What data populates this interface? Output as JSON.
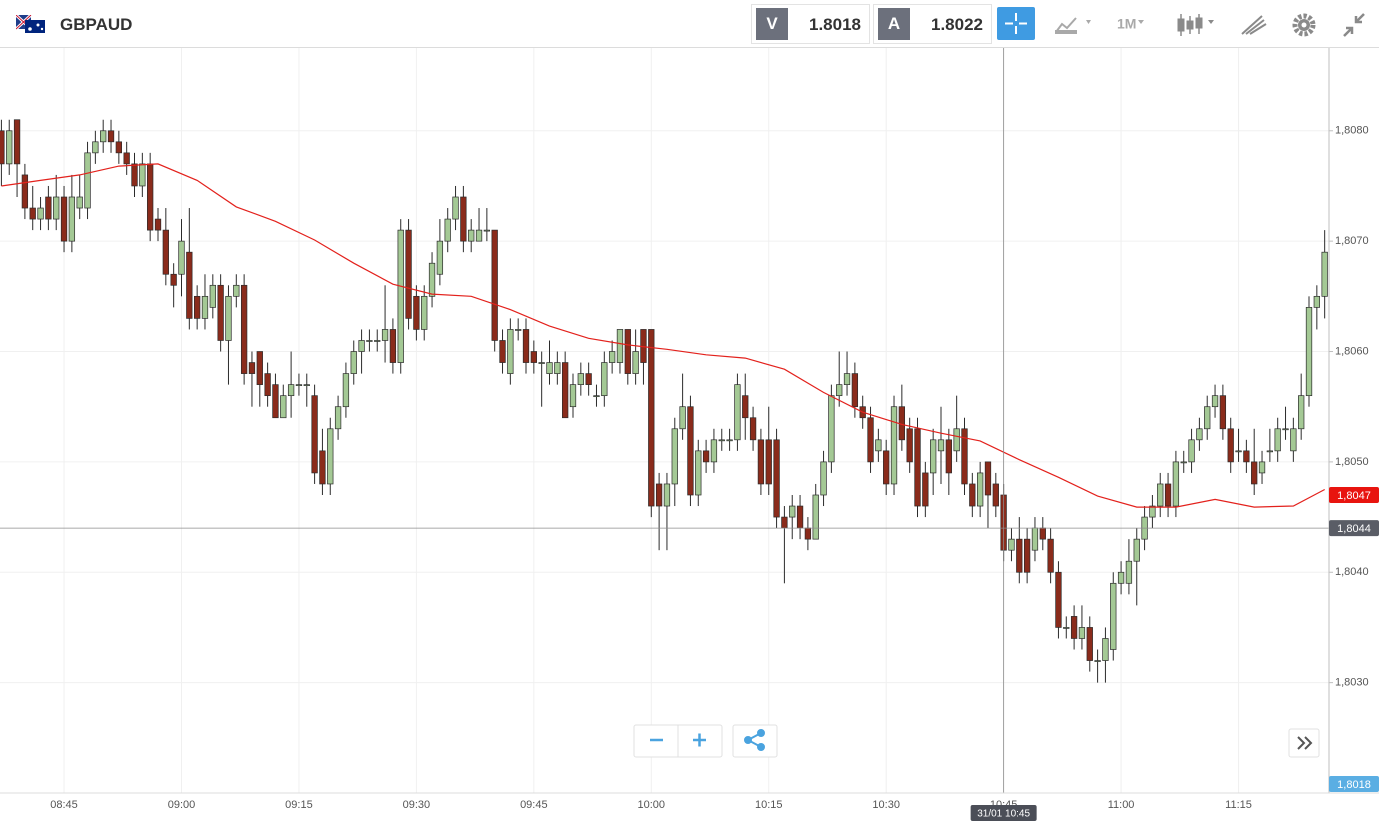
{
  "header": {
    "symbol": "GBPAUD",
    "bid_label": "V",
    "bid": "1.8018",
    "ask_label": "A",
    "ask": "1.8022",
    "timeframe": "1M"
  },
  "chart_data": {
    "type": "candlestick",
    "up_color": "#a4c995",
    "down_color": "#8a2b1b",
    "wick_color": "#2b2b2b",
    "ylim": [
      1.802,
      1.80875
    ],
    "yticks": [
      {
        "value": 1.803,
        "label": "1,8030"
      },
      {
        "value": 1.804,
        "label": "1,8040"
      },
      {
        "value": 1.805,
        "label": "1,8050"
      },
      {
        "value": 1.806,
        "label": "1,8060"
      },
      {
        "value": 1.807,
        "label": "1,8070"
      },
      {
        "value": 1.808,
        "label": "1,8080"
      }
    ],
    "xticks": [
      "08:45",
      "09:00",
      "09:15",
      "09:30",
      "09:45",
      "10:00",
      "10:15",
      "10:30",
      "10:45",
      "11:00",
      "11:15"
    ],
    "grid": true,
    "x": [
      "08:37",
      "08:38",
      "08:39",
      "08:40",
      "08:41",
      "08:42",
      "08:43",
      "08:44",
      "08:45",
      "08:46",
      "08:47",
      "08:48",
      "08:49",
      "08:50",
      "08:51",
      "08:52",
      "08:53",
      "08:54",
      "08:55",
      "08:56",
      "08:57",
      "08:58",
      "08:59",
      "09:00",
      "09:01",
      "09:02",
      "09:03",
      "09:04",
      "09:05",
      "09:06",
      "09:07",
      "09:08",
      "09:09",
      "09:10",
      "09:11",
      "09:12",
      "09:13",
      "09:14",
      "09:15",
      "09:16",
      "09:17",
      "09:18",
      "09:19",
      "09:20",
      "09:21",
      "09:22",
      "09:23",
      "09:24",
      "09:25",
      "09:26",
      "09:27",
      "09:28",
      "09:29",
      "09:30",
      "09:31",
      "09:32",
      "09:33",
      "09:34",
      "09:35",
      "09:36",
      "09:37",
      "09:38",
      "09:39",
      "09:40",
      "09:41",
      "09:42",
      "09:43",
      "09:44",
      "09:45",
      "09:46",
      "09:47",
      "09:48",
      "09:49",
      "09:50",
      "09:51",
      "09:52",
      "09:53",
      "09:54",
      "09:55",
      "09:56",
      "09:57",
      "09:58",
      "09:59",
      "10:00",
      "10:01",
      "10:02",
      "10:03",
      "10:04",
      "10:05",
      "10:06",
      "10:07",
      "10:08",
      "10:09",
      "10:10",
      "10:11",
      "10:12",
      "10:13",
      "10:14",
      "10:15",
      "10:16",
      "10:17",
      "10:18",
      "10:19",
      "10:20",
      "10:21",
      "10:22",
      "10:23",
      "10:24",
      "10:25",
      "10:26",
      "10:27",
      "10:28",
      "10:29",
      "10:30",
      "10:31",
      "10:32",
      "10:33",
      "10:34",
      "10:35",
      "10:36",
      "10:37",
      "10:38",
      "10:39",
      "10:40",
      "10:41",
      "10:42",
      "10:43",
      "10:44",
      "10:45",
      "10:46",
      "10:47",
      "10:48",
      "10:49",
      "10:50",
      "10:51",
      "10:52",
      "10:53",
      "10:54",
      "10:55",
      "10:56",
      "10:57",
      "10:58",
      "10:59",
      "11:00",
      "11:01",
      "11:02",
      "11:03",
      "11:04",
      "11:05",
      "11:06",
      "11:07",
      "11:08",
      "11:09",
      "11:10",
      "11:11",
      "11:12",
      "11:13",
      "11:14",
      "11:15",
      "11:16",
      "11:17",
      "11:18",
      "11:19",
      "11:20",
      "11:21",
      "11:22",
      "11:23",
      "11:24",
      "11:25",
      "11:26"
    ],
    "open": [
      1.808,
      1.8077,
      1.8081,
      1.8076,
      1.8073,
      1.8072,
      1.8074,
      1.8072,
      1.8074,
      1.807,
      1.8073,
      1.8073,
      1.8078,
      1.8079,
      1.808,
      1.8079,
      1.8078,
      1.8077,
      1.8075,
      1.8077,
      1.8072,
      1.8071,
      1.8067,
      1.8067,
      1.8069,
      1.8065,
      1.8063,
      1.8064,
      1.8066,
      1.8061,
      1.8065,
      1.8066,
      1.8059,
      1.806,
      1.8058,
      1.8057,
      1.8054,
      1.8056,
      1.8057,
      1.8057,
      1.8056,
      1.8051,
      1.8048,
      1.8053,
      1.8055,
      1.8058,
      1.806,
      1.8061,
      1.8061,
      1.8061,
      1.8062,
      1.8059,
      1.8071,
      1.8065,
      1.8062,
      1.8065,
      1.8067,
      1.807,
      1.8072,
      1.8074,
      1.807,
      1.807,
      1.8071,
      1.8071,
      1.8061,
      1.8058,
      1.8062,
      1.8062,
      1.806,
      1.8059,
      1.8058,
      1.8058,
      1.8059,
      1.8055,
      1.8057,
      1.8058,
      1.8056,
      1.8056,
      1.8059,
      1.8059,
      1.8062,
      1.8058,
      1.8062,
      1.8062,
      1.8048,
      1.8046,
      1.8048,
      1.8053,
      1.8055,
      1.8047,
      1.8051,
      1.805,
      1.8052,
      1.8052,
      1.8052,
      1.8056,
      1.8054,
      1.8052,
      1.8052,
      1.8052,
      1.8045,
      1.8045,
      1.8046,
      1.8044,
      1.8043,
      1.8047,
      1.805,
      1.8056,
      1.8057,
      1.8058,
      1.8055,
      1.8054,
      1.8051,
      1.8051,
      1.8048,
      1.8055,
      1.8053,
      1.8053,
      1.8049,
      1.8049,
      1.8051,
      1.8052,
      1.8051,
      1.8053,
      1.8048,
      1.8046,
      1.805,
      1.8048,
      1.8047,
      1.8042,
      1.8043,
      1.8043,
      1.8042,
      1.8044,
      1.8043,
      1.804,
      1.8035,
      1.8036,
      1.8034,
      1.8035,
      1.8032,
      1.8032,
      1.8033,
      1.8039,
      1.8039,
      1.8041,
      1.8043,
      1.8045,
      1.8046,
      1.8048,
      1.8046,
      1.805,
      1.805,
      1.8052,
      1.8053,
      1.8055,
      1.8056,
      1.8053,
      1.8051,
      1.8051,
      1.805,
      1.8049,
      1.8051,
      1.8051,
      1.8053,
      1.8051,
      1.8053,
      1.8056,
      1.8064,
      1.8065
    ],
    "high": [
      1.8081,
      1.8081,
      1.8081,
      1.8077,
      1.8075,
      1.8074,
      1.8075,
      1.8076,
      1.8075,
      1.8076,
      1.8076,
      1.8079,
      1.808,
      1.8081,
      1.8081,
      1.808,
      1.8079,
      1.8078,
      1.8078,
      1.8078,
      1.8073,
      1.8073,
      1.8068,
      1.8072,
      1.8073,
      1.8066,
      1.8067,
      1.8067,
      1.8067,
      1.8066,
      1.8067,
      1.8067,
      1.806,
      1.806,
      1.8059,
      1.8058,
      1.8057,
      1.806,
      1.8058,
      1.8058,
      1.8057,
      1.8053,
      1.8054,
      1.8056,
      1.8059,
      1.8061,
      1.8062,
      1.8062,
      1.8062,
      1.8066,
      1.8063,
      1.8072,
      1.8072,
      1.8066,
      1.8066,
      1.8069,
      1.8072,
      1.8073,
      1.8075,
      1.8075,
      1.8072,
      1.8073,
      1.8073,
      1.8071,
      1.8062,
      1.8063,
      1.8063,
      1.8063,
      1.8061,
      1.806,
      1.8061,
      1.806,
      1.806,
      1.8058,
      1.8059,
      1.8059,
      1.8057,
      1.806,
      1.8061,
      1.8062,
      1.8062,
      1.8062,
      1.8062,
      1.8062,
      1.8049,
      1.8049,
      1.8054,
      1.8058,
      1.8056,
      1.8052,
      1.8052,
      1.8053,
      1.8053,
      1.8053,
      1.8058,
      1.8058,
      1.8055,
      1.8053,
      1.8055,
      1.8053,
      1.8046,
      1.8047,
      1.8047,
      1.8045,
      1.8048,
      1.8051,
      1.8057,
      1.806,
      1.806,
      1.8059,
      1.8056,
      1.8055,
      1.8053,
      1.8052,
      1.8056,
      1.8057,
      1.8054,
      1.8054,
      1.805,
      1.8053,
      1.8055,
      1.8053,
      1.8056,
      1.8054,
      1.8049,
      1.805,
      1.805,
      1.8049,
      1.8048,
      1.8044,
      1.8045,
      1.8044,
      1.8045,
      1.8045,
      1.8044,
      1.8041,
      1.8036,
      1.8037,
      1.8037,
      1.8036,
      1.8033,
      1.8035,
      1.804,
      1.8041,
      1.8043,
      1.8044,
      1.8046,
      1.8047,
      1.8049,
      1.8049,
      1.8051,
      1.8051,
      1.8053,
      1.8054,
      1.8056,
      1.8057,
      1.8057,
      1.8054,
      1.8053,
      1.8052,
      1.8053,
      1.8051,
      1.8053,
      1.8054,
      1.8055,
      1.8054,
      1.8058,
      1.8065,
      1.8066,
      1.8071
    ],
    "low": [
      1.8075,
      1.8076,
      1.8074,
      1.8072,
      1.8071,
      1.8071,
      1.8071,
      1.8071,
      1.8069,
      1.8069,
      1.8072,
      1.8072,
      1.8077,
      1.8078,
      1.8078,
      1.8077,
      1.8076,
      1.8074,
      1.8074,
      1.807,
      1.807,
      1.8066,
      1.8064,
      1.8065,
      1.8062,
      1.8062,
      1.8062,
      1.8063,
      1.806,
      1.8057,
      1.8064,
      1.8057,
      1.8055,
      1.8055,
      1.8055,
      1.8054,
      1.8054,
      1.8054,
      1.8056,
      1.8055,
      1.8048,
      1.8047,
      1.8047,
      1.8052,
      1.8054,
      1.8057,
      1.8058,
      1.806,
      1.806,
      1.8059,
      1.8058,
      1.8058,
      1.8062,
      1.8061,
      1.8061,
      1.8064,
      1.8066,
      1.8069,
      1.8071,
      1.8069,
      1.8069,
      1.807,
      1.807,
      1.806,
      1.8058,
      1.8057,
      1.8061,
      1.8058,
      1.8058,
      1.8055,
      1.8057,
      1.8057,
      1.8054,
      1.8054,
      1.8056,
      1.8056,
      1.8055,
      1.8055,
      1.8058,
      1.8058,
      1.8057,
      1.8057,
      1.8057,
      1.8045,
      1.8042,
      1.8042,
      1.8046,
      1.8052,
      1.8046,
      1.8046,
      1.8049,
      1.8049,
      1.8051,
      1.8051,
      1.8051,
      1.8052,
      1.8051,
      1.8047,
      1.8047,
      1.8044,
      1.8039,
      1.8043,
      1.8043,
      1.8042,
      1.8043,
      1.8046,
      1.8049,
      1.8055,
      1.8056,
      1.8054,
      1.8053,
      1.8049,
      1.805,
      1.8047,
      1.8047,
      1.8051,
      1.8049,
      1.8045,
      1.8045,
      1.8047,
      1.8048,
      1.8047,
      1.805,
      1.8047,
      1.8045,
      1.8045,
      1.8044,
      1.8045,
      1.8041,
      1.8041,
      1.8039,
      1.8039,
      1.8041,
      1.8042,
      1.8039,
      1.8034,
      1.8034,
      1.8033,
      1.8033,
      1.8031,
      1.803,
      1.803,
      1.8032,
      1.8038,
      1.8038,
      1.8037,
      1.8042,
      1.8044,
      1.8045,
      1.8045,
      1.8045,
      1.8049,
      1.8049,
      1.8051,
      1.8052,
      1.8054,
      1.8052,
      1.8049,
      1.805,
      1.8049,
      1.8047,
      1.8048,
      1.805,
      1.805,
      1.8052,
      1.805,
      1.8052,
      1.8055,
      1.8062,
      1.8063
    ],
    "close": [
      1.8077,
      1.808,
      1.8077,
      1.8073,
      1.8072,
      1.8073,
      1.8072,
      1.8074,
      1.807,
      1.8074,
      1.8074,
      1.8078,
      1.8079,
      1.808,
      1.8079,
      1.8078,
      1.8077,
      1.8075,
      1.8077,
      1.8071,
      1.8071,
      1.8067,
      1.8066,
      1.807,
      1.8063,
      1.8063,
      1.8065,
      1.8066,
      1.8061,
      1.8065,
      1.8066,
      1.8058,
      1.8058,
      1.8057,
      1.8056,
      1.8054,
      1.8056,
      1.8057,
      1.8057,
      1.8057,
      1.8049,
      1.8048,
      1.8053,
      1.8055,
      1.8058,
      1.806,
      1.8061,
      1.8061,
      1.8061,
      1.8062,
      1.8059,
      1.8071,
      1.8063,
      1.8062,
      1.8065,
      1.8068,
      1.807,
      1.8072,
      1.8074,
      1.807,
      1.8071,
      1.8071,
      1.8071,
      1.8061,
      1.8059,
      1.8062,
      1.8062,
      1.8059,
      1.8059,
      1.8059,
      1.8059,
      1.8059,
      1.8054,
      1.8057,
      1.8058,
      1.8057,
      1.8056,
      1.8059,
      1.806,
      1.8062,
      1.8058,
      1.806,
      1.8059,
      1.8046,
      1.8046,
      1.8048,
      1.8053,
      1.8055,
      1.8047,
      1.8051,
      1.805,
      1.8052,
      1.8052,
      1.8052,
      1.8057,
      1.8054,
      1.8052,
      1.8048,
      1.8048,
      1.8045,
      1.8044,
      1.8046,
      1.8044,
      1.8043,
      1.8047,
      1.805,
      1.8056,
      1.8057,
      1.8058,
      1.8055,
      1.8054,
      1.805,
      1.8052,
      1.8048,
      1.8055,
      1.8052,
      1.805,
      1.8046,
      1.8046,
      1.8052,
      1.8052,
      1.8049,
      1.8053,
      1.8048,
      1.8046,
      1.8049,
      1.8047,
      1.8046,
      1.8042,
      1.8043,
      1.804,
      1.804,
      1.8044,
      1.8043,
      1.804,
      1.8035,
      1.8035,
      1.8034,
      1.8035,
      1.8032,
      1.8032,
      1.8034,
      1.8039,
      1.804,
      1.8041,
      1.8043,
      1.8045,
      1.8046,
      1.8048,
      1.8046,
      1.805,
      1.805,
      1.8052,
      1.8053,
      1.8055,
      1.8056,
      1.8053,
      1.805,
      1.8051,
      1.805,
      1.8048,
      1.805,
      1.8051,
      1.8053,
      1.8053,
      1.8053,
      1.8056,
      1.8064,
      1.8065,
      1.8069
    ],
    "ma": {
      "color": "#e3211c",
      "x": [
        "08:37",
        "08:42",
        "08:47",
        "08:52",
        "08:57",
        "09:02",
        "09:07",
        "09:12",
        "09:17",
        "09:22",
        "09:27",
        "09:32",
        "09:37",
        "09:42",
        "09:47",
        "09:52",
        "09:57",
        "10:02",
        "10:07",
        "10:12",
        "10:17",
        "10:22",
        "10:27",
        "10:32",
        "10:37",
        "10:42",
        "10:47",
        "10:52",
        "10:57",
        "11:02",
        "11:07",
        "11:12",
        "11:17",
        "11:22",
        "11:26"
      ],
      "values": [
        1.8075,
        1.80755,
        1.8076,
        1.80768,
        1.8077,
        1.80755,
        1.80731,
        1.80718,
        1.80701,
        1.8068,
        1.80661,
        1.80652,
        1.8065,
        1.80638,
        1.80623,
        1.80612,
        1.80606,
        1.80602,
        1.80597,
        1.80594,
        1.80584,
        1.80563,
        1.80545,
        1.80534,
        1.80526,
        1.80519,
        1.80502,
        1.80486,
        1.80469,
        1.80459,
        1.80459,
        1.80466,
        1.80459,
        1.8046,
        1.80475
      ]
    },
    "ma_tag": {
      "value": 1.8047,
      "label": "1,8047",
      "color": "#e8140f"
    },
    "crosshair": {
      "x": "10:45",
      "x_label": "31/01 10:45",
      "y": {
        "value": 1.8044,
        "label": "1,8044"
      }
    },
    "bid_tag": "1,8018"
  }
}
